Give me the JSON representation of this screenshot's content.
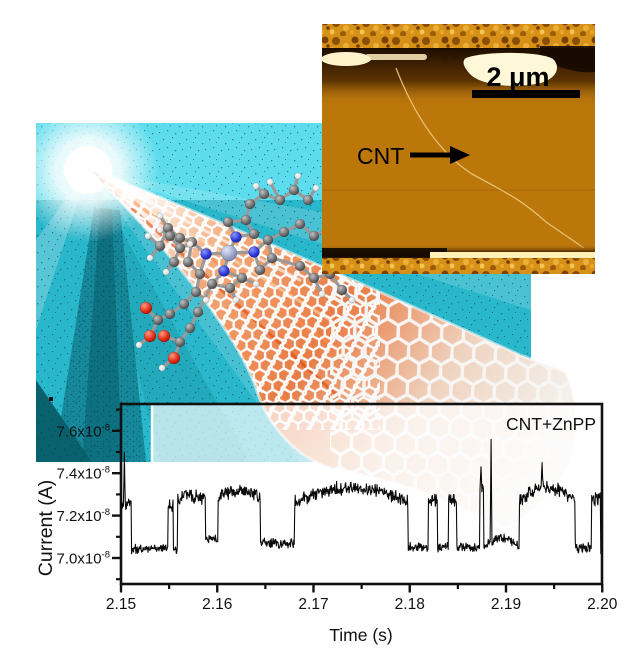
{
  "figure": {
    "afm": {
      "scale_label": "2 μm",
      "cnt_label": "CNT"
    }
  },
  "chart_data": {
    "type": "line",
    "title": "",
    "annotation": "CNT+ZnPP",
    "xlabel": "Time (s)",
    "ylabel": "Current (A)",
    "xlim": [
      2.15,
      2.2
    ],
    "ylim_1e8": [
      6.88,
      7.72
    ],
    "grid": false,
    "legend_position": "top-right-inside",
    "x_ticks": [
      2.15,
      2.16,
      2.17,
      2.18,
      2.19,
      2.2
    ],
    "x_tick_labels": [
      "2.15",
      "2.16",
      "2.17",
      "2.18",
      "2.19",
      "2.20"
    ],
    "x_minor_ticks": [
      2.155,
      2.165,
      2.175,
      2.185,
      2.195
    ],
    "y_ticks_1e8": [
      7.0,
      7.2,
      7.4,
      7.6
    ],
    "y_tick_labels": [
      {
        "mantissa": "7.0x10",
        "exp": "-8"
      },
      {
        "mantissa": "7.2x10",
        "exp": "-8"
      },
      {
        "mantissa": "7.4x10",
        "exp": "-8"
      },
      {
        "mantissa": "7.6x10",
        "exp": "-8"
      }
    ],
    "y_minor_ticks_1e8": [
      6.9,
      7.1,
      7.3,
      7.5,
      7.7
    ],
    "line_color": "#0a0a0a",
    "rts_signal": {
      "units": "1e-8 A",
      "dt": 5e-05,
      "noise_amp": 0.016,
      "low_level": 7.05,
      "high_level": 7.28,
      "segments": [
        [
          2.15,
          2.1511,
          7.26,
          0
        ],
        [
          2.1511,
          2.1549,
          7.045,
          0
        ],
        [
          2.1549,
          2.1554,
          7.25,
          0
        ],
        [
          2.1554,
          2.1559,
          7.04,
          0
        ],
        [
          2.1559,
          2.1588,
          7.275,
          0.02
        ],
        [
          2.1588,
          2.1601,
          7.09,
          0
        ],
        [
          2.1601,
          2.1645,
          7.28,
          0.04
        ],
        [
          2.1645,
          2.168,
          7.07,
          0
        ],
        [
          2.168,
          2.1798,
          7.26,
          0.07
        ],
        [
          2.1798,
          2.1819,
          7.05,
          0
        ],
        [
          2.1819,
          2.1829,
          7.27,
          0
        ],
        [
          2.1829,
          2.184,
          7.05,
          0
        ],
        [
          2.184,
          2.1849,
          7.27,
          0
        ],
        [
          2.1849,
          2.1873,
          7.05,
          0
        ],
        [
          2.1873,
          2.1877,
          7.33,
          0
        ],
        [
          2.1877,
          2.1914,
          7.05,
          0.045
        ],
        [
          2.1914,
          2.1972,
          7.27,
          0.06
        ],
        [
          2.1972,
          2.1989,
          7.05,
          0
        ],
        [
          2.1989,
          2.1998,
          7.28,
          0
        ],
        [
          2.1998,
          2.2,
          7.04,
          0
        ]
      ],
      "spikes": [
        [
          2.15035,
          7.5
        ],
        [
          2.1874,
          7.43
        ],
        [
          2.18845,
          7.56
        ],
        [
          2.19375,
          7.45
        ]
      ]
    }
  },
  "colors": {
    "background": "#ffffff",
    "cyan_scene": "#3ec9dc",
    "cyan_deep": "#29b7cb",
    "afm_orange": "#c07b0e",
    "afm_granular": "#d79018",
    "afm_dark_band": "#1c0c00",
    "afm_cream": "#fff6d4",
    "trace": "#0a0a0a",
    "text": "#111111",
    "carbon": "#5a5a5a",
    "nitrogen": "#2330c8",
    "oxygen": "#cc1400",
    "hydrogen": "#f2f2f2",
    "zinc": "#9aa4c8",
    "tube_orange": "#e86a30"
  }
}
